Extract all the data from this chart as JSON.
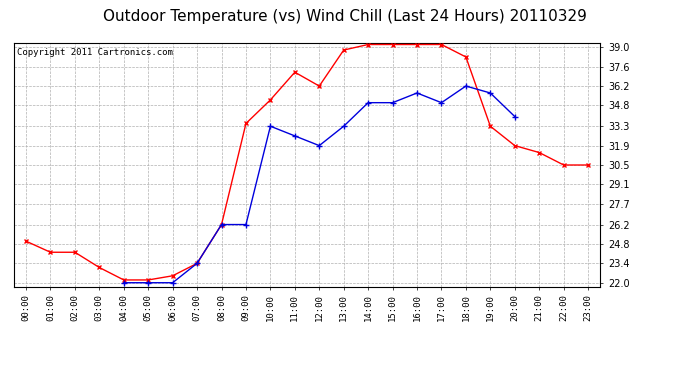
{
  "title": "Outdoor Temperature (vs) Wind Chill (Last 24 Hours) 20110329",
  "copyright": "Copyright 2011 Cartronics.com",
  "x_labels": [
    "00:00",
    "01:00",
    "02:00",
    "03:00",
    "04:00",
    "05:00",
    "06:00",
    "07:00",
    "08:00",
    "09:00",
    "10:00",
    "11:00",
    "12:00",
    "13:00",
    "14:00",
    "15:00",
    "16:00",
    "17:00",
    "18:00",
    "19:00",
    "20:00",
    "21:00",
    "22:00",
    "23:00"
  ],
  "temp_red": [
    25.0,
    24.2,
    24.2,
    23.1,
    22.2,
    22.2,
    22.5,
    23.4,
    26.2,
    33.5,
    35.2,
    37.2,
    36.2,
    38.8,
    39.2,
    39.2,
    39.2,
    39.2,
    38.3,
    33.3,
    31.9,
    31.4,
    30.5,
    30.5
  ],
  "wind_blue": [
    null,
    null,
    null,
    null,
    22.0,
    22.0,
    22.0,
    23.4,
    26.2,
    26.2,
    33.3,
    32.6,
    31.9,
    33.3,
    35.0,
    35.0,
    35.7,
    35.0,
    36.2,
    35.7,
    34.0,
    null,
    null,
    null
  ],
  "ylim_min": 22.0,
  "ylim_max": 39.0,
  "yticks": [
    22.0,
    23.4,
    24.8,
    26.2,
    27.7,
    29.1,
    30.5,
    31.9,
    33.3,
    34.8,
    36.2,
    37.6,
    39.0
  ],
  "bg_color": "#ffffff",
  "plot_bg_color": "#ffffff",
  "grid_color": "#b0b0b0",
  "red_color": "#ff0000",
  "blue_color": "#0000dd",
  "title_fontsize": 11,
  "copyright_fontsize": 6.5
}
